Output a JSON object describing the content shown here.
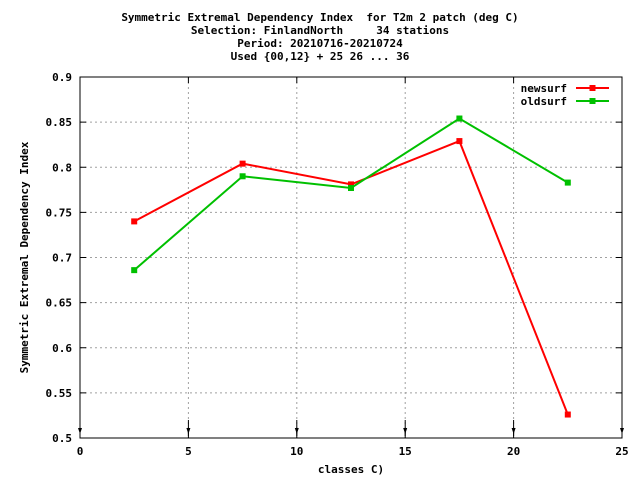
{
  "chart_data": {
    "type": "line",
    "title_lines": [
      "Symmetric Extremal Dependency Index  for T2m 2 patch (deg C)",
      "Selection: FinlandNorth     34 stations",
      "Period: 20210716-20210724",
      "Used {00,12} + 25 26 ... 36"
    ],
    "xlabel": "classes C)",
    "ylabel": "Symmetric Extremal Dependency Index",
    "xlim": [
      0,
      25
    ],
    "ylim": [
      0.5,
      0.9
    ],
    "x_ticks": [
      "0",
      "5",
      "10",
      "15",
      "20",
      "25"
    ],
    "y_ticks": [
      "0.5",
      "0.55",
      "0.6",
      "0.65",
      "0.7",
      "0.75",
      "0.8",
      "0.85",
      "0.9"
    ],
    "grid": true,
    "legend_position": "top-right",
    "x": [
      2.5,
      7.5,
      12.5,
      17.5,
      22.5
    ],
    "series": [
      {
        "name": "newsurf",
        "color": "#ff0000",
        "values": [
          0.74,
          0.804,
          0.781,
          0.829,
          0.526
        ]
      },
      {
        "name": "oldsurf",
        "color": "#00c000",
        "values": [
          0.686,
          0.79,
          0.777,
          0.854,
          0.783
        ]
      }
    ],
    "bottom_markers_x": [
      0,
      5,
      10,
      15,
      20,
      25
    ]
  }
}
